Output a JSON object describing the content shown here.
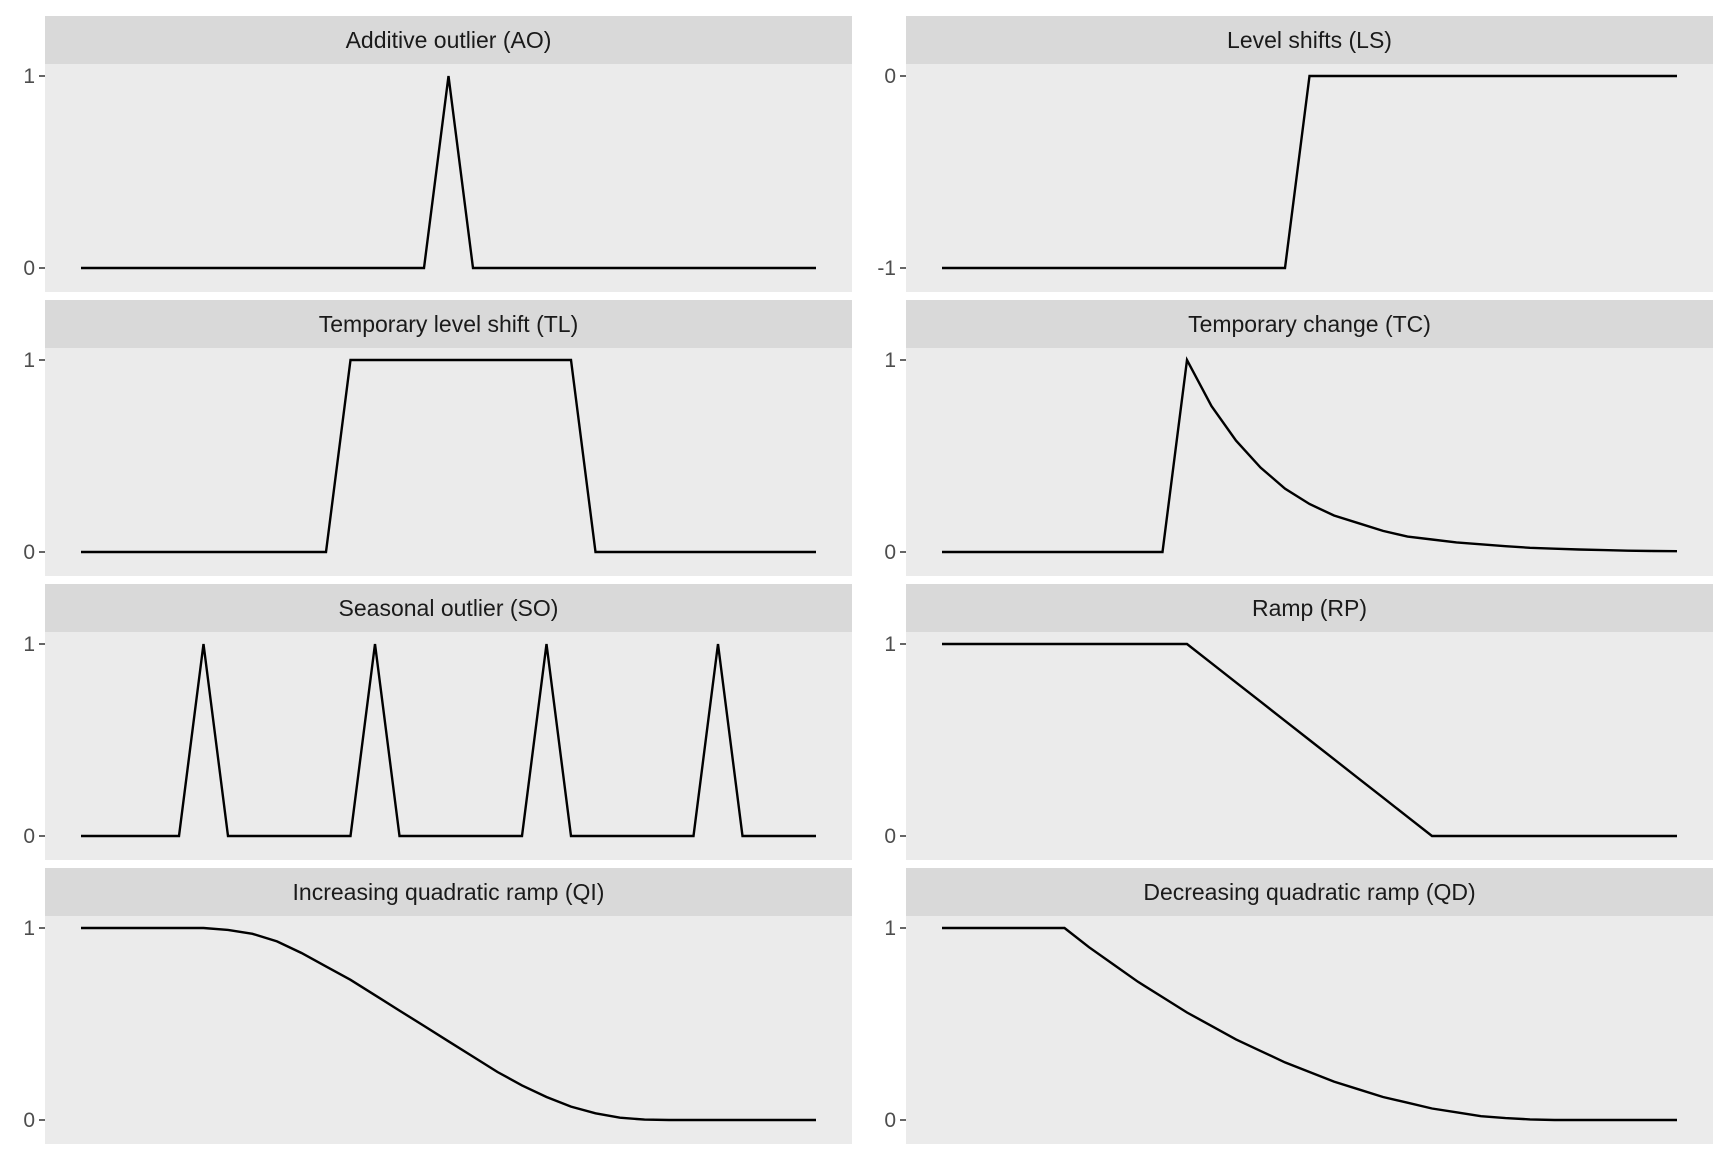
{
  "chart_data": [
    {
      "type": "line",
      "title": "Additive outlier (AO)",
      "ylim": [
        0,
        1
      ],
      "yticks": [
        "0",
        "1"
      ],
      "x": [
        1,
        2,
        3,
        4,
        5,
        6,
        7,
        8,
        9,
        10,
        11,
        12,
        13,
        14,
        15,
        16,
        17,
        18,
        19,
        20,
        21,
        22,
        23,
        24,
        25,
        26,
        27,
        28,
        29,
        30,
        31
      ],
      "series": [
        {
          "values": [
            0,
            0,
            0,
            0,
            0,
            0,
            0,
            0,
            0,
            0,
            0,
            0,
            0,
            0,
            0,
            1,
            0,
            0,
            0,
            0,
            0,
            0,
            0,
            0,
            0,
            0,
            0,
            0,
            0,
            0,
            0
          ]
        }
      ]
    },
    {
      "type": "line",
      "title": "Level shifts (LS)",
      "ylim": [
        -1,
        0
      ],
      "yticks": [
        "-1",
        "0"
      ],
      "x": [
        1,
        2,
        3,
        4,
        5,
        6,
        7,
        8,
        9,
        10,
        11,
        12,
        13,
        14,
        15,
        16,
        17,
        18,
        19,
        20,
        21,
        22,
        23,
        24,
        25,
        26,
        27,
        28,
        29,
        30,
        31
      ],
      "series": [
        {
          "values": [
            -1,
            -1,
            -1,
            -1,
            -1,
            -1,
            -1,
            -1,
            -1,
            -1,
            -1,
            -1,
            -1,
            -1,
            -1,
            0,
            0,
            0,
            0,
            0,
            0,
            0,
            0,
            0,
            0,
            0,
            0,
            0,
            0,
            0,
            0
          ]
        }
      ]
    },
    {
      "type": "line",
      "title": "Temporary level shift (TL)",
      "ylim": [
        0,
        1
      ],
      "yticks": [
        "0",
        "1"
      ],
      "x": [
        1,
        2,
        3,
        4,
        5,
        6,
        7,
        8,
        9,
        10,
        11,
        12,
        13,
        14,
        15,
        16,
        17,
        18,
        19,
        20,
        21,
        22,
        23,
        24,
        25,
        26,
        27,
        28,
        29,
        30,
        31
      ],
      "series": [
        {
          "values": [
            0,
            0,
            0,
            0,
            0,
            0,
            0,
            0,
            0,
            0,
            0,
            1,
            1,
            1,
            1,
            1,
            1,
            1,
            1,
            1,
            1,
            0,
            0,
            0,
            0,
            0,
            0,
            0,
            0,
            0,
            0
          ]
        }
      ]
    },
    {
      "type": "line",
      "title": "Temporary change (TC)",
      "ylim": [
        0,
        1
      ],
      "yticks": [
        "0",
        "1"
      ],
      "x": [
        1,
        2,
        3,
        4,
        5,
        6,
        7,
        8,
        9,
        10,
        11,
        12,
        13,
        14,
        15,
        16,
        17,
        18,
        19,
        20,
        21,
        22,
        23,
        24,
        25,
        26,
        27,
        28,
        29,
        30,
        31
      ],
      "series": [
        {
          "values": [
            0,
            0,
            0,
            0,
            0,
            0,
            0,
            0,
            0,
            0,
            1,
            0.76,
            0.58,
            0.44,
            0.33,
            0.25,
            0.19,
            0.15,
            0.11,
            0.08,
            0.065,
            0.05,
            0.04,
            0.03,
            0.022,
            0.017,
            0.013,
            0.01,
            0.007,
            0.005,
            0.004
          ]
        }
      ]
    },
    {
      "type": "line",
      "title": "Seasonal outlier (SO)",
      "ylim": [
        0,
        1
      ],
      "yticks": [
        "0",
        "1"
      ],
      "x": [
        1,
        2,
        3,
        4,
        5,
        6,
        7,
        8,
        9,
        10,
        11,
        12,
        13,
        14,
        15,
        16,
        17,
        18,
        19,
        20,
        21,
        22,
        23,
        24,
        25,
        26,
        27,
        28,
        29,
        30,
        31
      ],
      "series": [
        {
          "values": [
            0,
            0,
            0,
            0,
            0,
            1,
            0,
            0,
            0,
            0,
            0,
            0,
            1,
            0,
            0,
            0,
            0,
            0,
            0,
            1,
            0,
            0,
            0,
            0,
            0,
            0,
            1,
            0,
            0,
            0,
            0
          ]
        }
      ]
    },
    {
      "type": "line",
      "title": "Ramp (RP)",
      "ylim": [
        0,
        1
      ],
      "yticks": [
        "0",
        "1"
      ],
      "x": [
        1,
        2,
        3,
        4,
        5,
        6,
        7,
        8,
        9,
        10,
        11,
        12,
        13,
        14,
        15,
        16,
        17,
        18,
        19,
        20,
        21,
        22,
        23,
        24,
        25,
        26,
        27,
        28,
        29,
        30,
        31
      ],
      "series": [
        {
          "values": [
            1,
            1,
            1,
            1,
            1,
            1,
            1,
            1,
            1,
            1,
            1,
            0.9,
            0.8,
            0.7,
            0.6,
            0.5,
            0.4,
            0.3,
            0.2,
            0.1,
            0,
            0,
            0,
            0,
            0,
            0,
            0,
            0,
            0,
            0,
            0
          ]
        }
      ]
    },
    {
      "type": "line",
      "title": "Increasing quadratic ramp (QI)",
      "ylim": [
        0,
        1
      ],
      "yticks": [
        "0",
        "1"
      ],
      "x": [
        1,
        2,
        3,
        4,
        5,
        6,
        7,
        8,
        9,
        10,
        11,
        12,
        13,
        14,
        15,
        16,
        17,
        18,
        19,
        20,
        21,
        22,
        23,
        24,
        25,
        26,
        27,
        28,
        29,
        30,
        31
      ],
      "series": [
        {
          "values": [
            1,
            1,
            1,
            1,
            1,
            1,
            0.99,
            0.97,
            0.93,
            0.87,
            0.8,
            0.73,
            0.65,
            0.57,
            0.49,
            0.41,
            0.33,
            0.25,
            0.18,
            0.12,
            0.07,
            0.035,
            0.012,
            0.002,
            0,
            0,
            0,
            0,
            0,
            0,
            0
          ]
        }
      ]
    },
    {
      "type": "line",
      "title": "Decreasing quadratic ramp (QD)",
      "ylim": [
        0,
        1
      ],
      "yticks": [
        "0",
        "1"
      ],
      "x": [
        1,
        2,
        3,
        4,
        5,
        6,
        7,
        8,
        9,
        10,
        11,
        12,
        13,
        14,
        15,
        16,
        17,
        18,
        19,
        20,
        21,
        22,
        23,
        24,
        25,
        26,
        27,
        28,
        29,
        30,
        31
      ],
      "series": [
        {
          "values": [
            1,
            1,
            1,
            1,
            1,
            1,
            0.9,
            0.81,
            0.72,
            0.64,
            0.56,
            0.49,
            0.42,
            0.36,
            0.3,
            0.25,
            0.2,
            0.16,
            0.12,
            0.09,
            0.06,
            0.04,
            0.02,
            0.01,
            0.003,
            0,
            0,
            0,
            0,
            0,
            0
          ]
        }
      ]
    }
  ]
}
